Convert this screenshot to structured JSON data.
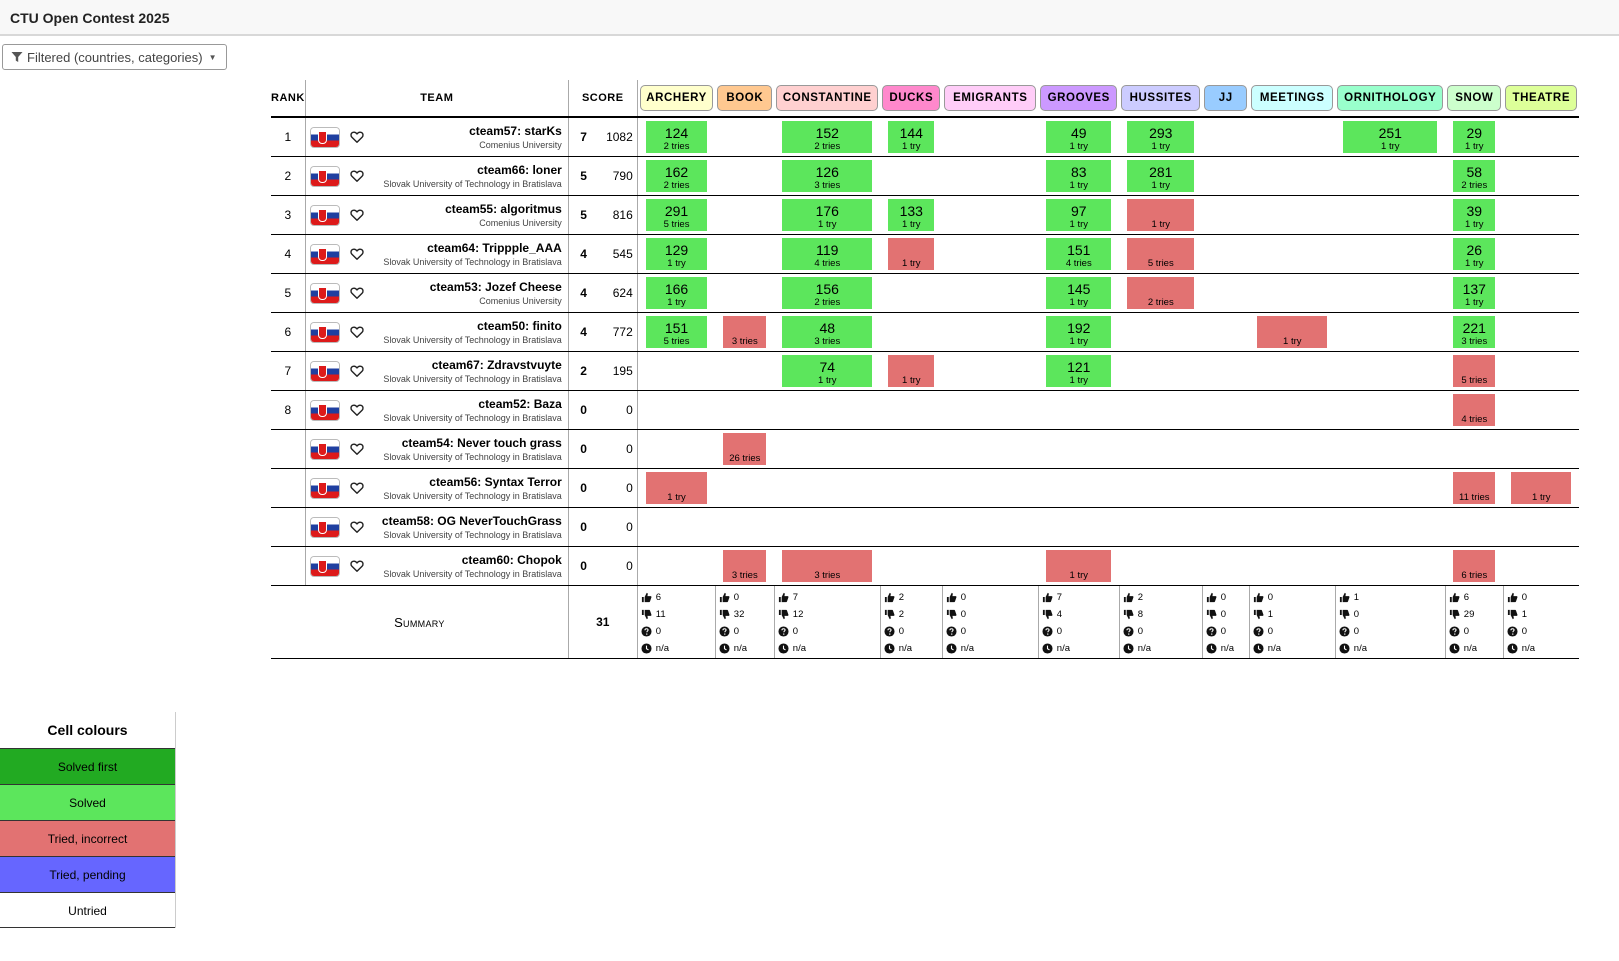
{
  "app": {
    "title": "CTU Open Contest 2025"
  },
  "filter": {
    "label": "Filtered (countries, categories)"
  },
  "headers": {
    "rank": "RANK",
    "team": "TEAM",
    "score": "SCORE"
  },
  "colors": {
    "solved_first": "#22aa22",
    "solved": "#5ce65c",
    "incorrect": "#e27272",
    "pending": "#6666ff",
    "untried": "#ffffff"
  },
  "problems": [
    {
      "label": "ARCHERY",
      "color": "#ffffcc"
    },
    {
      "label": "BOOK",
      "color": "#ffc890"
    },
    {
      "label": "CONSTANTINE",
      "color": "#ffd0d0"
    },
    {
      "label": "DUCKS",
      "color": "#ff88cc"
    },
    {
      "label": "EMIGRANTS",
      "color": "#ffcdf8"
    },
    {
      "label": "GROOVES",
      "color": "#cc99ff"
    },
    {
      "label": "HUSSITES",
      "color": "#ccccff"
    },
    {
      "label": "JJ",
      "color": "#99ccff"
    },
    {
      "label": "MEETINGS",
      "color": "#ccffff"
    },
    {
      "label": "ORNITHOLOGY",
      "color": "#99ffcc"
    },
    {
      "label": "SNOW",
      "color": "#ccffcc"
    },
    {
      "label": "THEATRE",
      "color": "#ddff99"
    }
  ],
  "teams": [
    {
      "rank": "1",
      "name": "cteam57: starKs",
      "affiliation": "Comenius University",
      "solved": "7",
      "penalty": "1082",
      "cells": [
        {
          "status": "ok",
          "time": "124",
          "tries": "2 tries"
        },
        null,
        {
          "status": "ok",
          "time": "152",
          "tries": "2 tries"
        },
        {
          "status": "ok",
          "time": "144",
          "tries": "1 try"
        },
        null,
        {
          "status": "ok",
          "time": "49",
          "tries": "1 try"
        },
        {
          "status": "ok",
          "time": "293",
          "tries": "1 try"
        },
        null,
        null,
        {
          "status": "ok",
          "time": "251",
          "tries": "1 try"
        },
        {
          "status": "ok",
          "time": "29",
          "tries": "1 try"
        },
        null
      ]
    },
    {
      "rank": "2",
      "name": "cteam66: loner",
      "affiliation": "Slovak University of Technology in Bratislava",
      "solved": "5",
      "penalty": "790",
      "cells": [
        {
          "status": "ok",
          "time": "162",
          "tries": "2 tries"
        },
        null,
        {
          "status": "ok",
          "time": "126",
          "tries": "3 tries"
        },
        null,
        null,
        {
          "status": "ok",
          "time": "83",
          "tries": "1 try"
        },
        {
          "status": "ok",
          "time": "281",
          "tries": "1 try"
        },
        null,
        null,
        null,
        {
          "status": "ok",
          "time": "58",
          "tries": "2 tries"
        },
        null
      ]
    },
    {
      "rank": "3",
      "name": "cteam55: algoritmus",
      "affiliation": "Comenius University",
      "solved": "5",
      "penalty": "816",
      "cells": [
        {
          "status": "ok",
          "time": "291",
          "tries": "5 tries"
        },
        null,
        {
          "status": "ok",
          "time": "176",
          "tries": "1 try"
        },
        {
          "status": "ok",
          "time": "133",
          "tries": "1 try"
        },
        null,
        {
          "status": "ok",
          "time": "97",
          "tries": "1 try"
        },
        {
          "status": "bad",
          "time": "",
          "tries": "1 try"
        },
        null,
        null,
        null,
        {
          "status": "ok",
          "time": "39",
          "tries": "1 try"
        },
        null
      ]
    },
    {
      "rank": "4",
      "name": "cteam64: Trippple_AAA",
      "affiliation": "Slovak University of Technology in Bratislava",
      "solved": "4",
      "penalty": "545",
      "cells": [
        {
          "status": "ok",
          "time": "129",
          "tries": "1 try"
        },
        null,
        {
          "status": "ok",
          "time": "119",
          "tries": "4 tries"
        },
        {
          "status": "bad",
          "time": "",
          "tries": "1 try"
        },
        null,
        {
          "status": "ok",
          "time": "151",
          "tries": "4 tries"
        },
        {
          "status": "bad",
          "time": "",
          "tries": "5 tries"
        },
        null,
        null,
        null,
        {
          "status": "ok",
          "time": "26",
          "tries": "1 try"
        },
        null
      ]
    },
    {
      "rank": "5",
      "name": "cteam53: Jozef Cheese",
      "affiliation": "Comenius University",
      "solved": "4",
      "penalty": "624",
      "cells": [
        {
          "status": "ok",
          "time": "166",
          "tries": "1 try"
        },
        null,
        {
          "status": "ok",
          "time": "156",
          "tries": "2 tries"
        },
        null,
        null,
        {
          "status": "ok",
          "time": "145",
          "tries": "1 try"
        },
        {
          "status": "bad",
          "time": "",
          "tries": "2 tries"
        },
        null,
        null,
        null,
        {
          "status": "ok",
          "time": "137",
          "tries": "1 try"
        },
        null
      ]
    },
    {
      "rank": "6",
      "name": "cteam50: finito",
      "affiliation": "Slovak University of Technology in Bratislava",
      "solved": "4",
      "penalty": "772",
      "cells": [
        {
          "status": "ok",
          "time": "151",
          "tries": "5 tries"
        },
        {
          "status": "bad",
          "time": "",
          "tries": "3 tries"
        },
        {
          "status": "ok",
          "time": "48",
          "tries": "3 tries"
        },
        null,
        null,
        {
          "status": "ok",
          "time": "192",
          "tries": "1 try"
        },
        null,
        null,
        {
          "status": "bad",
          "time": "",
          "tries": "1 try"
        },
        null,
        {
          "status": "ok",
          "time": "221",
          "tries": "3 tries"
        },
        null
      ]
    },
    {
      "rank": "7",
      "name": "cteam67: Zdravstvuyte",
      "affiliation": "Slovak University of Technology in Bratislava",
      "solved": "2",
      "penalty": "195",
      "cells": [
        null,
        null,
        {
          "status": "ok",
          "time": "74",
          "tries": "1 try"
        },
        {
          "status": "bad",
          "time": "",
          "tries": "1 try"
        },
        null,
        {
          "status": "ok",
          "time": "121",
          "tries": "1 try"
        },
        null,
        null,
        null,
        null,
        {
          "status": "bad",
          "time": "",
          "tries": "5 tries"
        },
        null
      ]
    },
    {
      "rank": "8",
      "name": "cteam52: Baza",
      "affiliation": "Slovak University of Technology in Bratislava",
      "solved": "0",
      "penalty": "0",
      "cells": [
        null,
        null,
        null,
        null,
        null,
        null,
        null,
        null,
        null,
        null,
        {
          "status": "bad",
          "time": "",
          "tries": "4 tries"
        },
        null
      ]
    },
    {
      "rank": "",
      "name": "cteam54: Never touch grass",
      "affiliation": "Slovak University of Technology in Bratislava",
      "solved": "0",
      "penalty": "0",
      "cells": [
        null,
        {
          "status": "bad",
          "time": "",
          "tries": "26 tries"
        },
        null,
        null,
        null,
        null,
        null,
        null,
        null,
        null,
        null,
        null
      ]
    },
    {
      "rank": "",
      "name": "cteam56: Syntax Terror",
      "affiliation": "Slovak University of Technology in Bratislava",
      "solved": "0",
      "penalty": "0",
      "cells": [
        {
          "status": "bad",
          "time": "",
          "tries": "1 try"
        },
        null,
        null,
        null,
        null,
        null,
        null,
        null,
        null,
        null,
        {
          "status": "bad",
          "time": "",
          "tries": "11 tries"
        },
        {
          "status": "bad",
          "time": "",
          "tries": "1 try"
        }
      ]
    },
    {
      "rank": "",
      "name": "cteam58: OG NeverTouchGrass",
      "affiliation": "Slovak University of Technology in Bratislava",
      "solved": "0",
      "penalty": "0",
      "cells": [
        null,
        null,
        null,
        null,
        null,
        null,
        null,
        null,
        null,
        null,
        null,
        null
      ]
    },
    {
      "rank": "",
      "name": "cteam60: Chopok",
      "affiliation": "Slovak University of Technology in Bratislava",
      "solved": "0",
      "penalty": "0",
      "cells": [
        null,
        {
          "status": "bad",
          "time": "",
          "tries": "3 tries"
        },
        {
          "status": "bad",
          "time": "",
          "tries": "3 tries"
        },
        null,
        null,
        {
          "status": "bad",
          "time": "",
          "tries": "1 try"
        },
        null,
        null,
        null,
        null,
        {
          "status": "bad",
          "time": "",
          "tries": "6 tries"
        },
        null
      ]
    }
  ],
  "summary": {
    "label": "Summary",
    "total_solved": "31",
    "stats": [
      {
        "accepted": "6",
        "rejected": "11",
        "pending": "0",
        "first": "n/a"
      },
      {
        "accepted": "0",
        "rejected": "32",
        "pending": "0",
        "first": "n/a"
      },
      {
        "accepted": "7",
        "rejected": "12",
        "pending": "0",
        "first": "n/a"
      },
      {
        "accepted": "2",
        "rejected": "2",
        "pending": "0",
        "first": "n/a"
      },
      {
        "accepted": "0",
        "rejected": "0",
        "pending": "0",
        "first": "n/a"
      },
      {
        "accepted": "7",
        "rejected": "4",
        "pending": "0",
        "first": "n/a"
      },
      {
        "accepted": "2",
        "rejected": "8",
        "pending": "0",
        "first": "n/a"
      },
      {
        "accepted": "0",
        "rejected": "0",
        "pending": "0",
        "first": "n/a"
      },
      {
        "accepted": "0",
        "rejected": "1",
        "pending": "0",
        "first": "n/a"
      },
      {
        "accepted": "1",
        "rejected": "0",
        "pending": "0",
        "first": "n/a"
      },
      {
        "accepted": "6",
        "rejected": "29",
        "pending": "0",
        "first": "n/a"
      },
      {
        "accepted": "0",
        "rejected": "1",
        "pending": "0",
        "first": "n/a"
      }
    ]
  },
  "legend": {
    "title": "Cell colours",
    "items": [
      {
        "label": "Solved first",
        "color": "#22aa22"
      },
      {
        "label": "Solved",
        "color": "#5ce65c"
      },
      {
        "label": "Tried, incorrect",
        "color": "#e27272"
      },
      {
        "label": "Tried, pending",
        "color": "#6666ff"
      },
      {
        "label": "Untried",
        "color": "#ffffff"
      }
    ]
  }
}
